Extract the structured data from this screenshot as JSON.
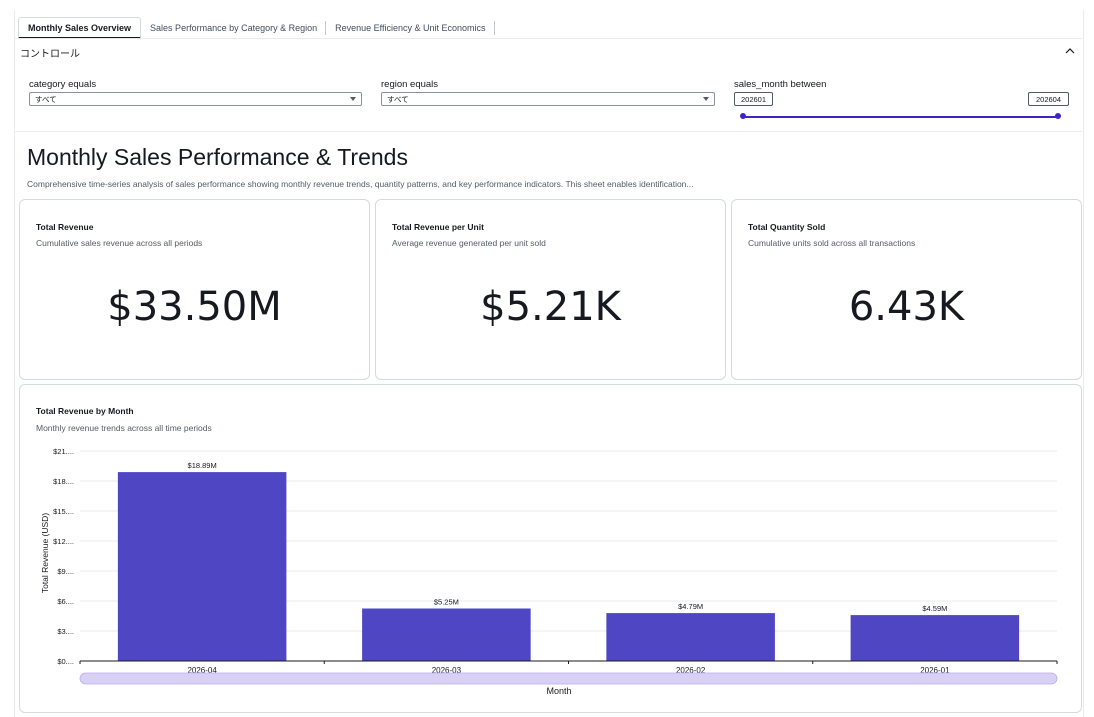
{
  "tabs": [
    {
      "label": "Monthly Sales Overview",
      "active": true
    },
    {
      "label": "Sales Performance by Category & Region",
      "active": false
    },
    {
      "label": "Revenue Efficiency & Unit Economics",
      "active": false
    }
  ],
  "controls": {
    "title": "コントロール",
    "category": {
      "label": "category equals",
      "value": "すべて"
    },
    "region": {
      "label": "region equals",
      "value": "すべて"
    },
    "sales_month": {
      "label": "sales_month between",
      "from": "202601",
      "to": "202604"
    }
  },
  "sheet": {
    "title": "Monthly Sales Performance & Trends",
    "description": "Comprehensive time-series analysis of sales performance showing monthly revenue trends, quantity patterns, and key performance indicators. This sheet enables identification..."
  },
  "kpis": [
    {
      "title": "Total Revenue",
      "subtitle": "Cumulative sales revenue across all periods",
      "value": "$33.50M"
    },
    {
      "title": "Total Revenue per Unit",
      "subtitle": "Average revenue generated per unit sold",
      "value": "$5.21K"
    },
    {
      "title": "Total Quantity Sold",
      "subtitle": "Cumulative units sold across all transactions",
      "value": "6.43K"
    }
  ],
  "chart_panel": {
    "title": "Total Revenue by Month",
    "subtitle": "Monthly revenue trends across all time periods"
  },
  "chart_data": {
    "type": "bar",
    "categories": [
      "2026-04",
      "2026-03",
      "2026-02",
      "2026-01"
    ],
    "values": [
      18.89,
      5.25,
      4.79,
      4.59
    ],
    "data_labels": [
      "$18.89M",
      "$5.25M",
      "$4.79M",
      "$4.59M"
    ],
    "ytick_values": [
      0,
      3,
      6,
      9,
      12,
      15,
      18,
      21
    ],
    "ytick_labels": [
      "$0....",
      "$3....",
      "$6....",
      "$9....",
      "$12....",
      "$15....",
      "$18....",
      "$21...."
    ],
    "ylim": [
      0,
      21
    ],
    "xlabel": "Month",
    "ylabel": "Total Revenue (USD)",
    "grid": true,
    "bar_color": "#4f46c3"
  },
  "colors": {
    "accent": "#3f22cc",
    "bar": "#4f46c3",
    "scroll": "#d8d0f5"
  }
}
